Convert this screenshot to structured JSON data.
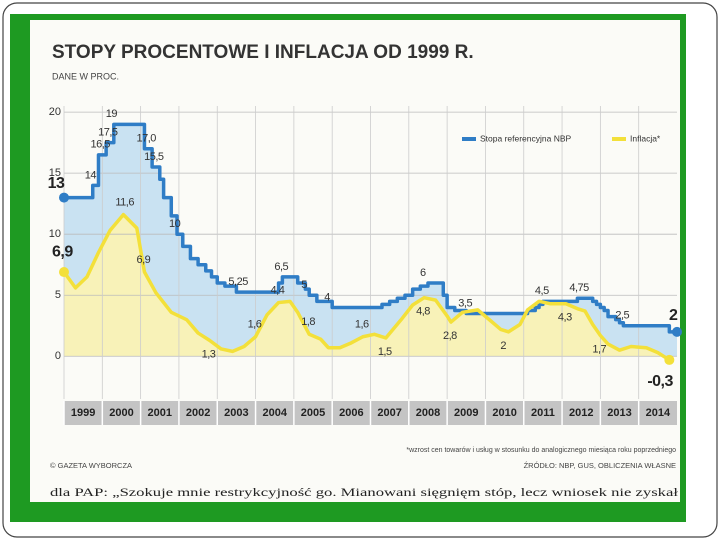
{
  "chart_data": {
    "type": "line",
    "title": "STOPY PROCENTOWE I INFLACJA OD 1999 R.",
    "subtitle": "DANE W PROC.",
    "footnote": "*wzrost cen towarów i usług w stosunku do analogicznego miesiąca roku poprzedniego",
    "source": "ŹRÓDŁO: NBP, GUS, OBLICZENIA WŁASNE",
    "credit": "© GAZETA WYBORCZA",
    "bottom_text": "dla PAP: „Szokuje mnie restrykcyjność go. Mianowani sięgnięm stóp, lecz wniosek nie zyskał",
    "xlim": [
      1999,
      2015
    ],
    "xticks": [
      1999,
      2000,
      2001,
      2002,
      2003,
      2004,
      2005,
      2006,
      2007,
      2008,
      2009,
      2010,
      2011,
      2012,
      2013,
      2014
    ],
    "ylim": [
      -3.5,
      20.5
    ],
    "yticks": [
      0,
      5,
      10,
      15,
      20
    ],
    "grid": true,
    "legend": "top-right",
    "series": [
      {
        "name": "Stopa referencyjna NBP",
        "color": "#2f7dc6",
        "area_color": "#c9e2f2",
        "step": true,
        "x": [
          1999.0,
          1999.75,
          1999.9,
          2000.1,
          2000.3,
          2001.1,
          2001.3,
          2001.5,
          2001.6,
          2001.8,
          2001.95,
          2002.1,
          2002.3,
          2002.5,
          2002.7,
          2002.85,
          2003.0,
          2003.2,
          2003.5,
          2004.6,
          2004.7,
          2005.1,
          2005.3,
          2005.4,
          2005.6,
          2006.0,
          2007.3,
          2007.5,
          2007.7,
          2007.9,
          2008.1,
          2008.3,
          2008.5,
          2008.9,
          2009.0,
          2009.2,
          2009.5,
          2011.1,
          2011.3,
          2011.4,
          2011.5,
          2012.4,
          2012.8,
          2012.9,
          2013.0,
          2013.1,
          2013.2,
          2013.4,
          2013.5,
          2013.6,
          2014.8
        ],
        "values": [
          13,
          14,
          16.5,
          17.5,
          19,
          17,
          15.5,
          14.5,
          13,
          11.5,
          10,
          9,
          8,
          7.5,
          7,
          6.5,
          6,
          5.75,
          5.25,
          6,
          6.5,
          6,
          5.5,
          5,
          4.5,
          4,
          4.25,
          4.5,
          4.75,
          5,
          5.5,
          5.75,
          6,
          5,
          4,
          3.75,
          3.5,
          3.75,
          4,
          4.25,
          4.5,
          4.75,
          4.5,
          4.25,
          4,
          3.75,
          3.25,
          3,
          2.75,
          2.5,
          2
        ],
        "value_labels": [
          "13",
          "14",
          "16,5",
          "17,5",
          "19",
          "17,0",
          "15,5",
          null,
          null,
          null,
          "10",
          null,
          null,
          null,
          null,
          null,
          null,
          null,
          "5,25",
          null,
          "6,5",
          null,
          null,
          "5",
          null,
          "4",
          null,
          null,
          null,
          null,
          null,
          null,
          "6",
          null,
          null,
          null,
          "3,5",
          null,
          null,
          null,
          "4,5",
          "4,75",
          null,
          null,
          null,
          null,
          null,
          null,
          null,
          "2,5",
          "2"
        ]
      },
      {
        "name": "Inflacja*",
        "color": "#f3e03a",
        "area_color": "#f8f2b8",
        "step": false,
        "x": [
          1999.0,
          1999.3,
          1999.6,
          1999.9,
          2000.2,
          2000.55,
          2000.9,
          2001.1,
          2001.4,
          2001.8,
          2002.2,
          2002.5,
          2002.8,
          2003.1,
          2003.4,
          2003.7,
          2004.0,
          2004.3,
          2004.6,
          2004.9,
          2005.1,
          2005.4,
          2005.7,
          2005.9,
          2006.2,
          2006.5,
          2006.8,
          2007.1,
          2007.4,
          2007.8,
          2008.1,
          2008.4,
          2008.7,
          2009.0,
          2009.1,
          2009.4,
          2009.8,
          2010.1,
          2010.4,
          2010.6,
          2010.9,
          2011.1,
          2011.4,
          2011.7,
          2012.1,
          2012.4,
          2012.6,
          2012.8,
          2013.0,
          2013.2,
          2013.5,
          2013.8,
          2014.2,
          2014.5,
          2014.8
        ],
        "values": [
          6.9,
          5.6,
          6.5,
          8.5,
          10.3,
          11.6,
          10.5,
          6.9,
          5.2,
          3.6,
          3.0,
          1.9,
          1.3,
          0.6,
          0.4,
          0.8,
          1.6,
          3.4,
          4.4,
          4.5,
          3.6,
          1.8,
          1.4,
          0.7,
          0.7,
          1.1,
          1.6,
          1.8,
          1.5,
          3.0,
          4.2,
          4.8,
          4.6,
          3.3,
          2.8,
          3.6,
          3.8,
          3.0,
          2.2,
          2,
          2.6,
          3.8,
          4.5,
          4.3,
          4.3,
          3.9,
          3.7,
          2.6,
          1.7,
          1.0,
          0.5,
          0.8,
          0.7,
          0.3,
          -0.3
        ],
        "value_labels": [
          "6,9",
          null,
          null,
          null,
          null,
          "11,6",
          null,
          "6,9",
          null,
          null,
          null,
          null,
          "1,3",
          null,
          null,
          null,
          "1,6",
          null,
          "4,4",
          null,
          null,
          "1,8",
          null,
          null,
          null,
          null,
          "1,6",
          null,
          "1,5",
          null,
          null,
          "4,8",
          null,
          null,
          "2,8",
          null,
          null,
          null,
          null,
          "2",
          null,
          null,
          null,
          null,
          "4,3",
          null,
          null,
          null,
          "1,7",
          null,
          null,
          null,
          null,
          null,
          "-0,3"
        ]
      }
    ]
  }
}
